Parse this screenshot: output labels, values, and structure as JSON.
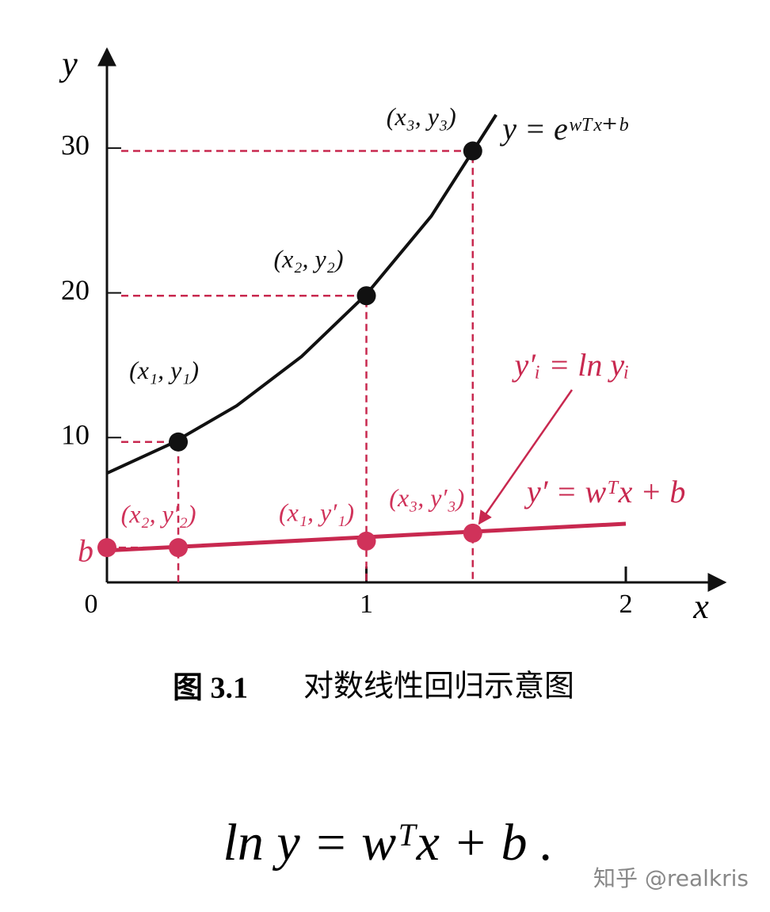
{
  "chart_data": {
    "type": "line",
    "xlabel": "x",
    "ylabel": "y",
    "xlim": [
      0,
      2.35
    ],
    "ylim": [
      0,
      36.5
    ],
    "xticks": [
      0,
      1,
      2
    ],
    "yticks": [
      10,
      20,
      30
    ],
    "series": [
      {
        "name": "y = eʷᵀˣ⁺ᵇ",
        "color": "#111111",
        "x": [
          0,
          0.25,
          0.5,
          0.75,
          1,
          1.25,
          1.5
        ],
        "values": [
          7.54,
          9.6,
          12.2,
          15.6,
          19.9,
          25.3,
          32.3
        ]
      },
      {
        "name": "y′ = wᵀx + b",
        "color": "#c8284f",
        "x": [
          0,
          2
        ],
        "values": [
          2.2,
          4.05
        ]
      }
    ],
    "points": [
      {
        "color": "#111111",
        "x": [
          0.275,
          1.0,
          1.41
        ],
        "values": [
          9.7,
          19.8,
          29.8
        ],
        "labels": [
          "(x₁, y₁)",
          "(x₂, y₂)",
          "(x₃, y₃)"
        ]
      },
      {
        "color": "#d0325a",
        "x": [
          0,
          0.275,
          1.0,
          1.41
        ],
        "values": [
          2.4,
          2.4,
          2.85,
          3.4
        ],
        "labels": [
          "b",
          "(x₂, y′₂)",
          "(x₁, y′₁)",
          "(x₃, y′₃)"
        ]
      }
    ],
    "annotation": "y′ᵢ = ln yᵢ"
  },
  "caption": {
    "number": "图 3.1",
    "text": "对数线性回归示意图"
  },
  "equation": "ln y = wᵀx + b .",
  "watermark": "知乎 @realkris"
}
